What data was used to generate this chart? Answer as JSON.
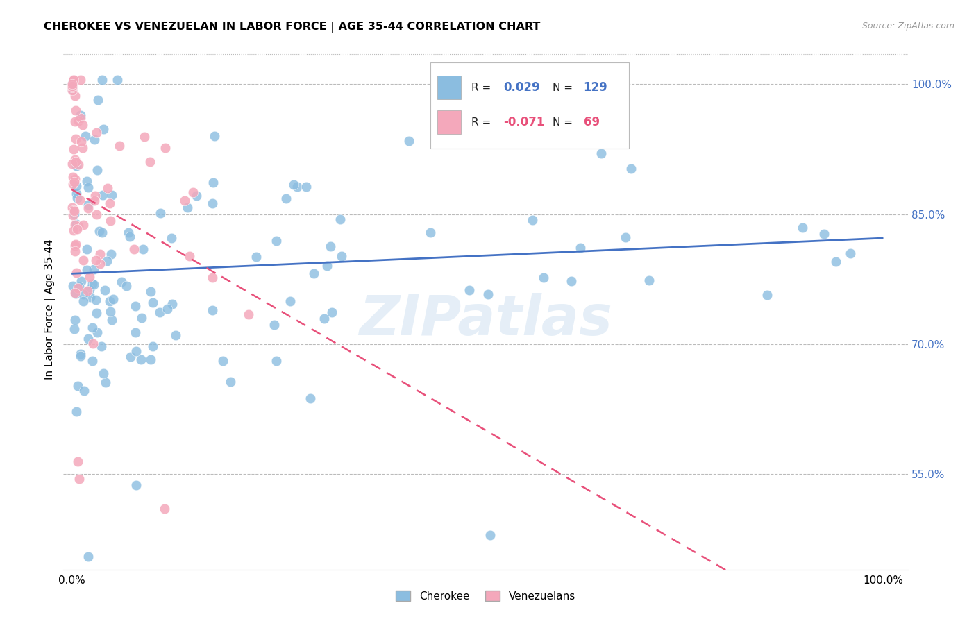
{
  "title": "CHEROKEE VS VENEZUELAN IN LABOR FORCE | AGE 35-44 CORRELATION CHART",
  "source": "Source: ZipAtlas.com",
  "ylabel": "In Labor Force | Age 35-44",
  "legend_cherokee": "Cherokee",
  "legend_venezuelan": "Venezuelans",
  "r_cherokee": 0.029,
  "n_cherokee": 129,
  "r_venezuelan": -0.071,
  "n_venezuelan": 69,
  "color_cherokee": "#8bbde0",
  "color_venezuelan": "#f4a8bb",
  "color_cherokee_line": "#4472c4",
  "color_venezuelan_line": "#e8507a",
  "watermark": "ZIPatlas",
  "background_color": "#ffffff",
  "grid_color": "#bbbbbb",
  "ytick_vals": [
    0.55,
    0.7,
    0.85,
    1.0
  ],
  "ytick_labels": [
    "55.0%",
    "70.0%",
    "85.0%",
    "100.0%"
  ],
  "ylim_low": 0.44,
  "ylim_high": 1.04,
  "xlim_low": -0.01,
  "xlim_high": 1.03
}
